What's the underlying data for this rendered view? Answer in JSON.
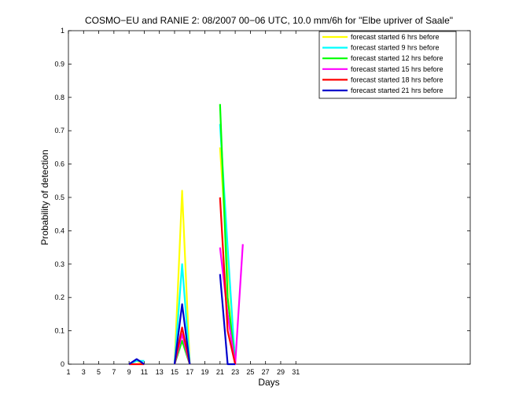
{
  "chart_data": {
    "type": "line",
    "title": "COSMO−EU and RANIE 2: 08/2007 00−06 UTC, 10.0 mm/6h for \"Elbe upriver of Saale\"",
    "xlabel": "Days",
    "ylabel": "Probability of detection",
    "xlim": [
      1,
      54
    ],
    "ylim": [
      0,
      1
    ],
    "xticks": [
      1,
      3,
      5,
      7,
      9,
      11,
      13,
      15,
      17,
      19,
      21,
      23,
      25,
      27,
      29,
      31
    ],
    "yticks": [
      0,
      0.1,
      0.2,
      0.3,
      0.4,
      0.5,
      0.6,
      0.7,
      0.8,
      0.9,
      1
    ],
    "ytick_labels": [
      "0",
      "0.1",
      "0.2",
      "0.3",
      "0.4",
      "0.5",
      "0.6",
      "0.7",
      "0.8",
      "0.9",
      "1"
    ],
    "grid": false,
    "legend_position": "top-right",
    "series": [
      {
        "name": "forecast started 6 hrs before",
        "color": "#ffff00",
        "segments": [
          [
            [
              9,
              0
            ],
            [
              10,
              0.01
            ],
            [
              11,
              0
            ]
          ],
          [
            [
              15,
              0
            ],
            [
              16,
              0.52
            ],
            [
              17,
              0
            ]
          ],
          [
            [
              21,
              0.65
            ],
            [
              22,
              0.3
            ],
            [
              23,
              0
            ]
          ]
        ]
      },
      {
        "name": "forecast started 9 hrs before",
        "color": "#00ffff",
        "segments": [
          [
            [
              9,
              0
            ],
            [
              10,
              0.01
            ],
            [
              11,
              0.01
            ]
          ],
          [
            [
              15,
              0
            ],
            [
              16,
              0.3
            ],
            [
              17,
              0
            ]
          ],
          [
            [
              21,
              0.72
            ],
            [
              22,
              0.35
            ],
            [
              23,
              0
            ]
          ]
        ]
      },
      {
        "name": "forecast started 12 hrs before",
        "color": "#00ff00",
        "segments": [
          [
            [
              15,
              0
            ],
            [
              16,
              0.07
            ],
            [
              17,
              0
            ]
          ],
          [
            [
              21,
              0.78
            ],
            [
              22,
              0.2
            ],
            [
              23,
              0
            ]
          ]
        ]
      },
      {
        "name": "forecast started 15 hrs before",
        "color": "#ff00ff",
        "segments": [
          [
            [
              15,
              0
            ],
            [
              16,
              0.09
            ],
            [
              17,
              0
            ]
          ],
          [
            [
              21,
              0.35
            ],
            [
              22,
              0.15
            ],
            [
              23,
              0
            ],
            [
              24,
              0.36
            ]
          ]
        ]
      },
      {
        "name": "forecast started 18 hrs before",
        "color": "#ff0000",
        "segments": [
          [
            [
              9,
              0
            ],
            [
              10,
              0
            ],
            [
              11,
              0
            ]
          ],
          [
            [
              15,
              0
            ],
            [
              16,
              0.11
            ],
            [
              17,
              0
            ]
          ],
          [
            [
              21,
              0.5
            ],
            [
              22,
              0.1
            ],
            [
              23,
              0
            ]
          ]
        ]
      },
      {
        "name": "forecast started 21 hrs before",
        "color": "#0000cc",
        "segments": [
          [
            [
              9,
              0
            ],
            [
              10,
              0.015
            ],
            [
              11,
              0
            ]
          ],
          [
            [
              15,
              0
            ],
            [
              16,
              0.18
            ],
            [
              17,
              0
            ]
          ],
          [
            [
              21,
              0.27
            ],
            [
              22,
              0
            ],
            [
              23,
              0
            ]
          ]
        ]
      }
    ]
  }
}
